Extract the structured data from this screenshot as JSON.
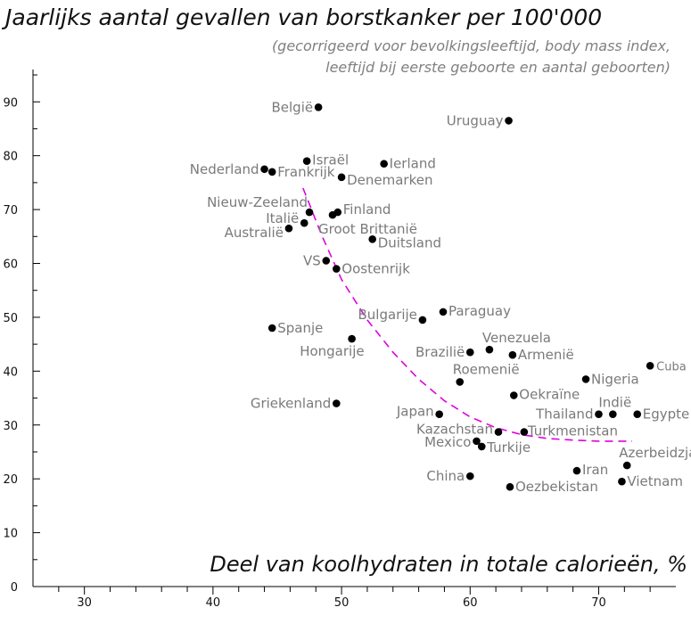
{
  "chart_data": {
    "type": "scatter",
    "title": "Jaarlijks aantal gevallen van borstkanker per 100'000",
    "subtitle_lines": [
      "(gecorrigeerd voor bevolkingsleeftijd, body mass index,",
      "leeftijd bij eerste geboorte en aantal geboorten)"
    ],
    "xlabel": "Deel van koolhydraten in totale calorieën, %",
    "ylabel": "",
    "xlim": [
      26,
      76
    ],
    "ylim": [
      0,
      96
    ],
    "x_ticks": [
      30,
      40,
      50,
      60,
      70
    ],
    "y_ticks": [
      0,
      10,
      20,
      30,
      40,
      50,
      60,
      70,
      80,
      90
    ],
    "grid": false,
    "trend_color": "#e000e0",
    "trend_line": [
      {
        "x": 47.0,
        "y": 74.0
      },
      {
        "x": 48.5,
        "y": 65.0
      },
      {
        "x": 50.0,
        "y": 57.0
      },
      {
        "x": 52.0,
        "y": 49.5
      },
      {
        "x": 54.0,
        "y": 43.5
      },
      {
        "x": 56.0,
        "y": 38.5
      },
      {
        "x": 58.0,
        "y": 34.5
      },
      {
        "x": 60.0,
        "y": 31.5
      },
      {
        "x": 62.0,
        "y": 29.5
      },
      {
        "x": 64.0,
        "y": 28.2
      },
      {
        "x": 66.0,
        "y": 27.5
      },
      {
        "x": 68.0,
        "y": 27.2
      },
      {
        "x": 70.0,
        "y": 27.0
      },
      {
        "x": 72.6,
        "y": 27.0
      }
    ],
    "points": [
      {
        "label": "België",
        "x": 48.2,
        "y": 89.0,
        "anchor": "end",
        "dx": -6,
        "dy": 0
      },
      {
        "label": "Uruguay",
        "x": 63.0,
        "y": 86.5,
        "anchor": "end",
        "dx": -6,
        "dy": 0
      },
      {
        "label": "Nederland",
        "x": 44.0,
        "y": 77.5,
        "anchor": "end",
        "dx": -6,
        "dy": 0
      },
      {
        "label": "Frankrijk",
        "x": 44.6,
        "y": 77.0,
        "anchor": "start",
        "dx": 6,
        "dy": 0
      },
      {
        "label": "Israël",
        "x": 47.3,
        "y": 79.0,
        "anchor": "start",
        "dx": 6,
        "dy": -1
      },
      {
        "label": "Ierland",
        "x": 53.3,
        "y": 78.5,
        "anchor": "start",
        "dx": 6,
        "dy": 0
      },
      {
        "label": "Denemarken",
        "x": 50.0,
        "y": 76.0,
        "anchor": "start",
        "dx": 6,
        "dy": 3
      },
      {
        "label": "Nieuw-Zeeland",
        "x": 47.5,
        "y": 69.5,
        "anchor": "end",
        "dx": -2,
        "dy": -11
      },
      {
        "label": "Finland",
        "x": 49.7,
        "y": 69.5,
        "anchor": "start",
        "dx": 6,
        "dy": -3
      },
      {
        "label": "Groot Brittanië",
        "x": 49.3,
        "y": 69.0,
        "anchor": "start",
        "dx": -16,
        "dy": 16
      },
      {
        "label": "Italië",
        "x": 47.1,
        "y": 67.5,
        "anchor": "end",
        "dx": -6,
        "dy": -5
      },
      {
        "label": "Australië",
        "x": 45.9,
        "y": 66.5,
        "anchor": "end",
        "dx": -6,
        "dy": 5
      },
      {
        "label": "Duitsland",
        "x": 52.4,
        "y": 64.5,
        "anchor": "start",
        "dx": 6,
        "dy": 4
      },
      {
        "label": "VS",
        "x": 48.8,
        "y": 60.5,
        "anchor": "end",
        "dx": -6,
        "dy": 0
      },
      {
        "label": "Oostenrijk",
        "x": 49.6,
        "y": 59.0,
        "anchor": "start",
        "dx": 6,
        "dy": 0
      },
      {
        "label": "Bulgarije",
        "x": 56.3,
        "y": 49.5,
        "anchor": "end",
        "dx": -6,
        "dy": -6
      },
      {
        "label": "Paraguay",
        "x": 57.9,
        "y": 51.0,
        "anchor": "start",
        "dx": 6,
        "dy": -1
      },
      {
        "label": "Spanje",
        "x": 44.6,
        "y": 48.0,
        "anchor": "start",
        "dx": 6,
        "dy": 0
      },
      {
        "label": "Hongarije",
        "x": 50.8,
        "y": 46.0,
        "anchor": "end",
        "dx": 14,
        "dy": 14
      },
      {
        "label": "Venezuela",
        "x": 61.5,
        "y": 44.0,
        "anchor": "start",
        "dx": -8,
        "dy": -13
      },
      {
        "label": "Brazilië",
        "x": 60.0,
        "y": 43.5,
        "anchor": "end",
        "dx": -6,
        "dy": 0
      },
      {
        "label": "Armenië",
        "x": 63.3,
        "y": 43.0,
        "anchor": "start",
        "dx": 6,
        "dy": 0
      },
      {
        "label": "Cuba",
        "x": 74.0,
        "y": 41.0,
        "anchor": "start",
        "dx": 7,
        "dy": 0,
        "small": true
      },
      {
        "label": "Roemenië",
        "x": 59.2,
        "y": 38.0,
        "anchor": "start",
        "dx": -8,
        "dy": -14
      },
      {
        "label": "Nigeria",
        "x": 69.0,
        "y": 38.5,
        "anchor": "start",
        "dx": 6,
        "dy": 0
      },
      {
        "label": "Oekraïne",
        "x": 63.4,
        "y": 35.5,
        "anchor": "start",
        "dx": 6,
        "dy": -1
      },
      {
        "label": "Griekenland",
        "x": 49.6,
        "y": 34.0,
        "anchor": "end",
        "dx": -6,
        "dy": 0
      },
      {
        "label": "Indië",
        "x": 71.1,
        "y": 32.0,
        "anchor": "start",
        "dx": -16,
        "dy": -13
      },
      {
        "label": "Japan",
        "x": 57.6,
        "y": 32.0,
        "anchor": "end",
        "dx": -6,
        "dy": -3
      },
      {
        "label": "Thailand",
        "x": 70.0,
        "y": 32.0,
        "anchor": "end",
        "dx": -6,
        "dy": 0
      },
      {
        "label": "Egypte",
        "x": 73.0,
        "y": 32.0,
        "anchor": "start",
        "dx": 6,
        "dy": 0
      },
      {
        "label": "Kazachstan",
        "x": 62.2,
        "y": 28.7,
        "anchor": "end",
        "dx": -6,
        "dy": -3
      },
      {
        "label": "Turkmenistan",
        "x": 64.2,
        "y": 28.7,
        "anchor": "start",
        "dx": 4,
        "dy": -1
      },
      {
        "label": "Mexico",
        "x": 60.5,
        "y": 27.0,
        "anchor": "end",
        "dx": -6,
        "dy": 1
      },
      {
        "label": "Turkije",
        "x": 60.9,
        "y": 26.0,
        "anchor": "start",
        "dx": 6,
        "dy": 1
      },
      {
        "label": "Azerbeidzjan",
        "x": 72.2,
        "y": 22.5,
        "anchor": "start",
        "dx": -9,
        "dy": -14
      },
      {
        "label": "Iran",
        "x": 68.3,
        "y": 21.5,
        "anchor": "start",
        "dx": 6,
        "dy": -1
      },
      {
        "label": "China",
        "x": 60.0,
        "y": 20.5,
        "anchor": "end",
        "dx": -6,
        "dy": 0
      },
      {
        "label": "Vietnam",
        "x": 71.8,
        "y": 19.5,
        "anchor": "start",
        "dx": 6,
        "dy": 0
      },
      {
        "label": "Oezbekistan",
        "x": 63.1,
        "y": 18.5,
        "anchor": "start",
        "dx": 6,
        "dy": 0
      }
    ]
  }
}
